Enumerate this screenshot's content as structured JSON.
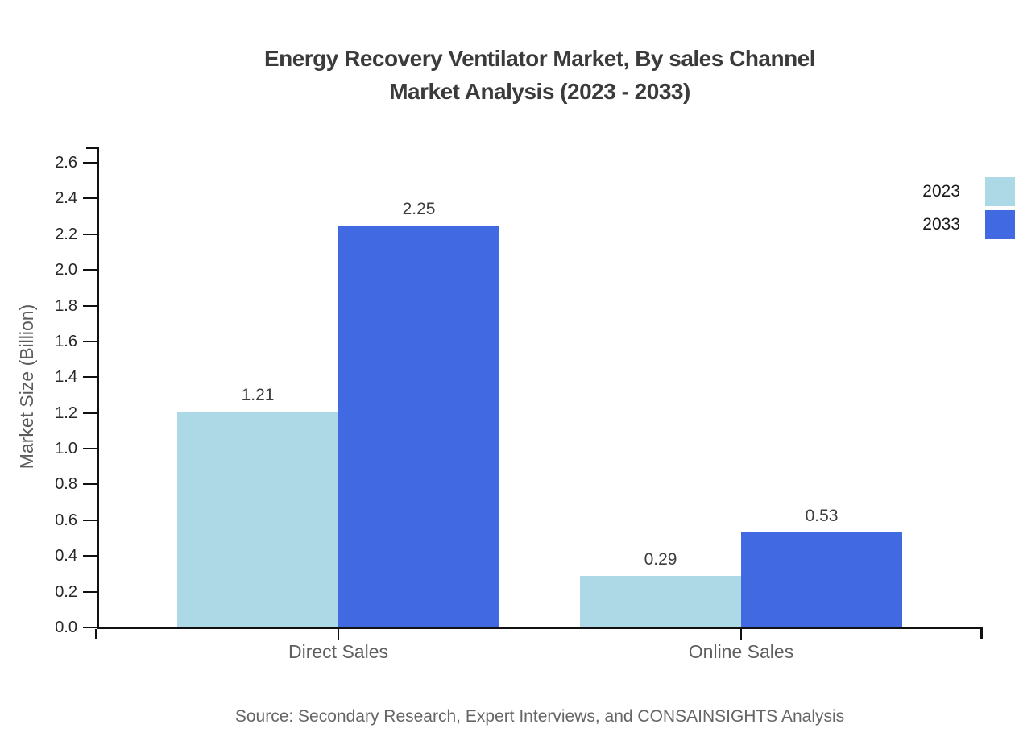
{
  "page": {
    "title_line1": "Energy Recovery Ventilator Market, By sales Channel",
    "title_line2": "Market Analysis (2023 - 2033)",
    "source_note": "Source: Secondary Research, Expert Interviews, and CONSAINSIGHTS Analysis"
  },
  "chart_data": {
    "type": "bar",
    "title": "Energy Recovery Ventilator Market, By sales Channel Market Analysis (2023 - 2033)",
    "categories": [
      "Direct Sales",
      "Online Sales"
    ],
    "series": [
      {
        "name": "2023",
        "color": "#ADD8E6",
        "values": [
          1.21,
          0.29
        ]
      },
      {
        "name": "2033",
        "color": "#4169E1",
        "values": [
          2.25,
          0.53
        ]
      }
    ],
    "xlabel": "",
    "ylabel": "Market Size (Billion)",
    "ylim": [
      0.0,
      2.7
    ],
    "yticks": [
      0.0,
      0.2,
      0.4,
      0.6,
      0.8,
      1.0,
      1.2,
      1.4,
      1.6,
      1.8,
      2.0,
      2.2,
      2.4,
      2.6
    ],
    "value_labels": [
      [
        1.21,
        2.25
      ],
      [
        0.29,
        0.53
      ]
    ],
    "grid": false,
    "legend_position": "top-right",
    "source": "Source: Secondary Research, Expert Interviews, and CONSAINSIGHTS Analysis",
    "colors": {
      "series_2023": "#ADD8E6",
      "series_2033": "#4169E1",
      "title_text": "#3b3b3b",
      "axis": "#111111",
      "tick_text": "#262626",
      "category_text": "#5f5f5f",
      "source_text": "#666666"
    }
  }
}
